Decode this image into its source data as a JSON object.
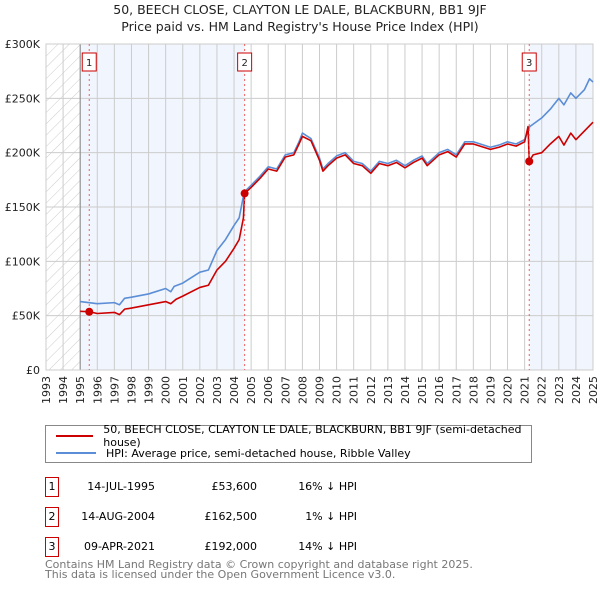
{
  "title": "50, BEECH CLOSE, CLAYTON LE DALE, BLACKBURN, BB1 9JF",
  "subtitle": "Price paid vs. HM Land Registry's House Price Index (HPI)",
  "chart_data": {
    "type": "line",
    "ylim": [
      0,
      300000
    ],
    "xlim": [
      1993,
      2025
    ],
    "yticks": [
      {
        "v": 0,
        "label": "£0"
      },
      {
        "v": 50000,
        "label": "£50K"
      },
      {
        "v": 100000,
        "label": "£100K"
      },
      {
        "v": 150000,
        "label": "£150K"
      },
      {
        "v": 200000,
        "label": "£200K"
      },
      {
        "v": 250000,
        "label": "£250K"
      },
      {
        "v": 300000,
        "label": "£300K"
      }
    ],
    "xticks": [
      "1993",
      "1994",
      "1995",
      "1996",
      "1997",
      "1998",
      "1999",
      "2000",
      "2001",
      "2002",
      "2003",
      "2004",
      "2005",
      "2006",
      "2007",
      "2008",
      "2009",
      "2010",
      "2011",
      "2012",
      "2013",
      "2014",
      "2015",
      "2016",
      "2017",
      "2018",
      "2019",
      "2020",
      "2021",
      "2022",
      "2023",
      "2024",
      "2025"
    ],
    "grid": true,
    "series": [
      {
        "name": "50, BEECH CLOSE, CLAYTON LE DALE, BLACKBURN, BB1 9JF (semi-detached house)",
        "color": "#cc0000",
        "x": [
          1995,
          1995.53,
          1996,
          1997,
          1997.3,
          1997.6,
          1998,
          1999,
          2000,
          2000.3,
          2000.6,
          2001,
          2002,
          2002.5,
          2003,
          2003.5,
          2004,
          2004.3,
          2004.55,
          2004.62,
          2005,
          2005.5,
          2006,
          2006.5,
          2007,
          2007.5,
          2007.8,
          2008,
          2008.5,
          2009,
          2009.2,
          2009.5,
          2010,
          2010.5,
          2011,
          2011.5,
          2012,
          2012.5,
          2013,
          2013.5,
          2014,
          2014.5,
          2015,
          2015.3,
          2016,
          2016.5,
          2017,
          2017.5,
          2018,
          2019,
          2019.5,
          2020,
          2020.5,
          2021,
          2021.2,
          2021.27,
          2021.5,
          2022,
          2022.5,
          2023,
          2023.3,
          2023.7,
          2024,
          2024.5,
          2025
        ],
        "y": [
          54000,
          53600,
          52000,
          53000,
          51000,
          56000,
          57000,
          60000,
          63000,
          61000,
          65000,
          68000,
          76000,
          78000,
          92000,
          100000,
          112000,
          120000,
          140000,
          162500,
          168000,
          176000,
          185000,
          183000,
          196000,
          198000,
          208000,
          215000,
          211000,
          193000,
          183000,
          188000,
          195000,
          198000,
          190000,
          188000,
          181000,
          190000,
          188000,
          191000,
          186000,
          191000,
          195000,
          188000,
          198000,
          201000,
          196000,
          208000,
          208000,
          203000,
          205000,
          208000,
          206000,
          210000,
          224000,
          192000,
          198000,
          200000,
          208000,
          215000,
          207000,
          218000,
          212000,
          220000,
          228000
        ]
      },
      {
        "name": "HPI: Average price, semi-detached house, Ribble Valley",
        "color": "#5b8ed6",
        "x": [
          1995,
          1996,
          1997,
          1997.3,
          1997.6,
          1998,
          1999,
          2000,
          2000.3,
          2000.5,
          2001,
          2002,
          2002.5,
          2003,
          2003.5,
          2004,
          2004.3,
          2004.6,
          2005,
          2005.5,
          2006,
          2006.5,
          2007,
          2007.5,
          2007.8,
          2008,
          2008.5,
          2009,
          2009.2,
          2009.5,
          2010,
          2010.5,
          2011,
          2011.5,
          2012,
          2012.5,
          2013,
          2013.5,
          2014,
          2014.5,
          2015,
          2015.3,
          2016,
          2016.5,
          2017,
          2017.5,
          2018,
          2019,
          2019.5,
          2020,
          2020.5,
          2021,
          2021.3,
          2022,
          2022.5,
          2023,
          2023.3,
          2023.7,
          2024,
          2024.5,
          2024.8,
          2025
        ],
        "y": [
          63000,
          61000,
          62000,
          60000,
          66000,
          67000,
          70000,
          75000,
          72000,
          77000,
          80000,
          90000,
          92000,
          110000,
          120000,
          133000,
          140000,
          164000,
          170000,
          178000,
          187000,
          185000,
          198000,
          200000,
          210000,
          218000,
          213000,
          195000,
          185000,
          190000,
          197000,
          200000,
          192000,
          190000,
          183000,
          192000,
          190000,
          193000,
          188000,
          193000,
          197000,
          190000,
          200000,
          203000,
          198000,
          210000,
          210000,
          205000,
          207000,
          210000,
          208000,
          212000,
          224000,
          232000,
          240000,
          250000,
          244000,
          255000,
          250000,
          258000,
          268000,
          265000
        ]
      }
    ],
    "sales": [
      {
        "n": "1",
        "x": 1995.53,
        "y": 53600
      },
      {
        "n": "2",
        "x": 2004.62,
        "y": 162500
      },
      {
        "n": "3",
        "x": 2021.27,
        "y": 192000
      }
    ]
  },
  "legend": {
    "property": "50, BEECH CLOSE, CLAYTON LE DALE, BLACKBURN, BB1 9JF (semi-detached house)",
    "hpi": "HPI: Average price, semi-detached house, Ribble Valley"
  },
  "transactions": [
    {
      "n": "1",
      "date": "14-JUL-1995",
      "price": "£53,600",
      "hpi": "16% ↓ HPI"
    },
    {
      "n": "2",
      "date": "14-AUG-2004",
      "price": "£162,500",
      "hpi": "1% ↓ HPI"
    },
    {
      "n": "3",
      "date": "09-APR-2021",
      "price": "£192,000",
      "hpi": "14% ↓ HPI"
    }
  ],
  "footer": {
    "line1": "Contains HM Land Registry data © Crown copyright and database right 2025.",
    "line2": "This data is licensed under the Open Government Licence v3.0."
  }
}
